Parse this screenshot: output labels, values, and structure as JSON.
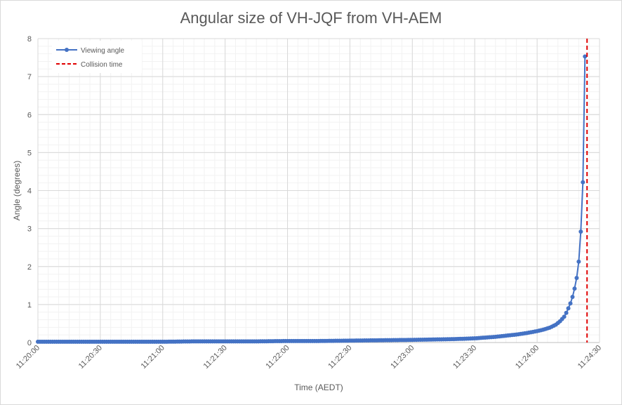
{
  "chart_data": {
    "type": "line",
    "title": "Angular size of VH-JQF from VH-AEM",
    "xlabel": "Time (AEDT)",
    "ylabel": "Angle (degrees)",
    "xlim": [
      "11:20:00",
      "11:24:30"
    ],
    "ylim": [
      0,
      8
    ],
    "xticks": [
      "11:20:00",
      "11:20:30",
      "11:21:00",
      "11:21:30",
      "11:22:00",
      "11:22:30",
      "11:23:00",
      "11:23:30",
      "11:24:00",
      "11:24:30"
    ],
    "yticks": [
      0,
      1,
      2,
      3,
      4,
      5,
      6,
      7,
      8
    ],
    "grid": true,
    "legend_position": "top-left",
    "series": [
      {
        "name": "Viewing angle",
        "color": "#4472c4",
        "marker": "circle",
        "x": [
          "11:20:00",
          "11:20:15",
          "11:20:30",
          "11:20:45",
          "11:21:00",
          "11:21:15",
          "11:21:30",
          "11:21:45",
          "11:22:00",
          "11:22:15",
          "11:22:30",
          "11:22:45",
          "11:23:00",
          "11:23:10",
          "11:23:20",
          "11:23:30",
          "11:23:35",
          "11:23:40",
          "11:23:45",
          "11:23:50",
          "11:23:55",
          "11:24:00",
          "11:24:03",
          "11:24:06",
          "11:24:09",
          "11:24:11",
          "11:24:13",
          "11:24:14",
          "11:24:15",
          "11:24:16",
          "11:24:17",
          "11:24:18",
          "11:24:19",
          "11:24:20",
          "11:24:21",
          "11:24:22",
          "11:24:23"
        ],
        "y": [
          0.02,
          0.02,
          0.02,
          0.02,
          0.02,
          0.03,
          0.03,
          0.03,
          0.04,
          0.04,
          0.05,
          0.06,
          0.07,
          0.08,
          0.09,
          0.11,
          0.13,
          0.15,
          0.18,
          0.21,
          0.25,
          0.3,
          0.34,
          0.39,
          0.47,
          0.56,
          0.68,
          0.78,
          0.9,
          1.03,
          1.2,
          1.42,
          1.7,
          2.13,
          2.92,
          4.22,
          7.53
        ]
      },
      {
        "name": "Collision time",
        "color": "#e00000",
        "style": "dashed",
        "x_value": "11:24:24"
      }
    ]
  }
}
